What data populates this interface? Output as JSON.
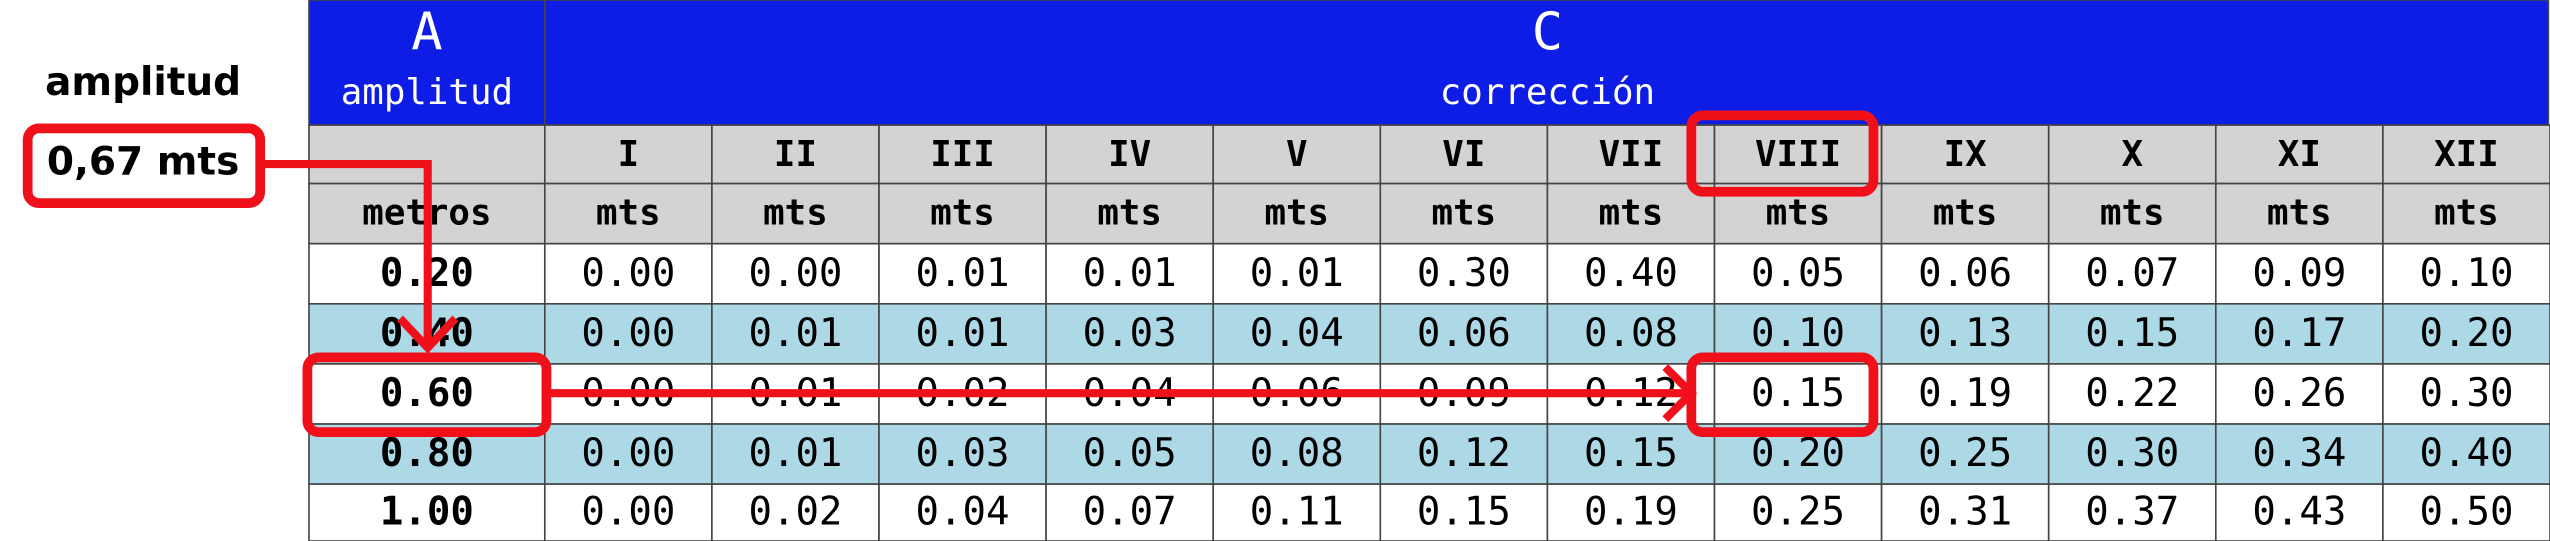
{
  "annotations": {
    "label": "amplitud",
    "value": "0,67 mts"
  },
  "table": {
    "header": {
      "a_letter": "A",
      "a_name": "amplitud",
      "c_letter": "C",
      "c_name": "corrección"
    },
    "columns": [
      "I",
      "II",
      "III",
      "IV",
      "V",
      "VI",
      "VII",
      "VIII",
      "IX",
      "X",
      "XI",
      "XII"
    ],
    "units_label": "metros",
    "units": [
      "mts",
      "mts",
      "mts",
      "mts",
      "mts",
      "mts",
      "mts",
      "mts",
      "mts",
      "mts",
      "mts",
      "mts"
    ],
    "rows": [
      [
        "0.20",
        "0.00",
        "0.00",
        "0.01",
        "0.01",
        "0.01",
        "0.30",
        "0.40",
        "0.05",
        "0.06",
        "0.07",
        "0.09",
        "0.10"
      ],
      [
        "0.40",
        "0.00",
        "0.01",
        "0.01",
        "0.03",
        "0.04",
        "0.06",
        "0.08",
        "0.10",
        "0.13",
        "0.15",
        "0.17",
        "0.20"
      ],
      [
        "0.60",
        "0.00",
        "0.01",
        "0.02",
        "0.04",
        "0.06",
        "0.09",
        "0.12",
        "0.15",
        "0.19",
        "0.22",
        "0.26",
        "0.30"
      ],
      [
        "0.80",
        "0.00",
        "0.01",
        "0.03",
        "0.05",
        "0.08",
        "0.12",
        "0.15",
        "0.20",
        "0.25",
        "0.30",
        "0.34",
        "0.40"
      ],
      [
        "1.00",
        "0.00",
        "0.02",
        "0.04",
        "0.07",
        "0.11",
        "0.15",
        "0.19",
        "0.25",
        "0.31",
        "0.37",
        "0.43",
        "0.50"
      ]
    ]
  }
}
